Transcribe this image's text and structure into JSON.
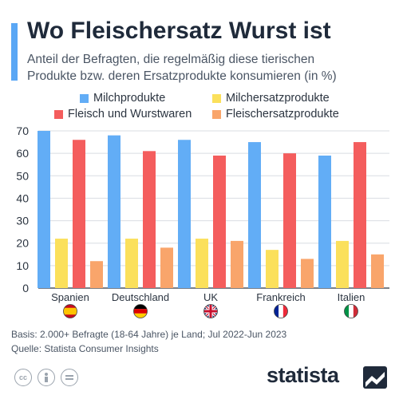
{
  "header": {
    "title": "Wo Fleischersatz Wurst ist",
    "subtitle": "Anteil der Befragten, die regelmäßig diese tierischen Produkte bzw. deren Ersatzprodukte konsumieren (in %)"
  },
  "footer": {
    "basis": "Basis: 2.000+ Befragte (18-64 Jahre) je Land; Jul 2022-Jun 2023",
    "quelle": "Quelle: Statista Consumer Insights",
    "brand": "statista"
  },
  "chart_data": {
    "type": "bar",
    "categories": [
      "Spanien",
      "Deutschland",
      "UK",
      "Frankreich",
      "Italien"
    ],
    "series": [
      {
        "name": "Milchprodukte",
        "color": "#62adf6",
        "values": [
          70,
          68,
          66,
          65,
          59
        ]
      },
      {
        "name": "Milchersatzprodukte",
        "color": "#fbe05b",
        "values": [
          22,
          22,
          22,
          17,
          21
        ]
      },
      {
        "name": "Fleisch und Wurstwaren",
        "color": "#f45d5d",
        "values": [
          66,
          61,
          59,
          60,
          65
        ]
      },
      {
        "name": "Fleischersatzprodukte",
        "color": "#f9a56b",
        "values": [
          12,
          18,
          21,
          13,
          15
        ]
      }
    ],
    "yticks": [
      0,
      10,
      20,
      30,
      40,
      50,
      60,
      70
    ],
    "ylim": [
      0,
      70
    ],
    "grid": true,
    "legend": "top",
    "flags": [
      "spain-flag-icon",
      "germany-flag-icon",
      "uk-flag-icon",
      "france-flag-icon",
      "italy-flag-icon"
    ]
  }
}
